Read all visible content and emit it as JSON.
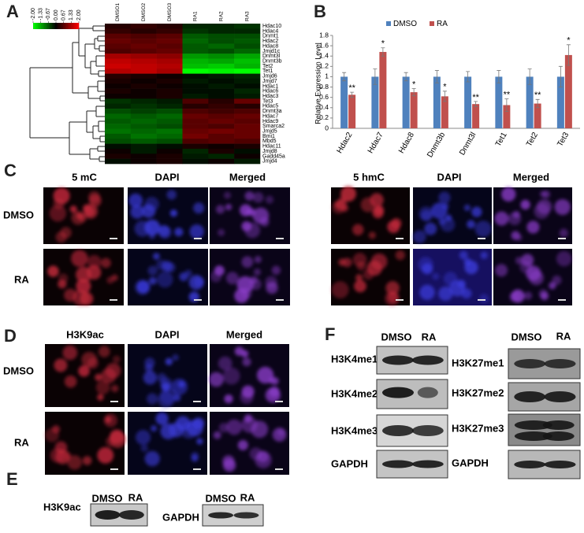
{
  "chart_data": [
    {
      "type": "heatmap",
      "columns": [
        "DMSO1",
        "DMSO2",
        "DMSO3",
        "RA1",
        "RA2",
        "RA3"
      ],
      "rows": [
        "Hdac10",
        "Hdac4",
        "Dnmt1",
        "Hdac2",
        "Hdac8",
        "Jmjd1c",
        "Dnmt3l",
        "Dnmt3b",
        "Tet2",
        "Tet1",
        "Jmjd6",
        "Jmjd7",
        "Hdac1",
        "Hdac6",
        "Hdac3",
        "Tet3",
        "Hdac5",
        "Dnmt3a",
        "Hdac7",
        "Hdac9",
        "Smarca2",
        "Jmjd5",
        "Bmi1",
        "Mbd5",
        "Hdac11",
        "Jmjd8",
        "Gadd45a",
        "Jmjd4"
      ],
      "values": [
        [
          0.3,
          0.4,
          0.3,
          -0.3,
          -0.3,
          -0.4
        ],
        [
          0.4,
          0.3,
          0.4,
          -0.4,
          -0.3,
          -0.3
        ],
        [
          0.7,
          0.6,
          0.7,
          -0.7,
          -0.6,
          -0.6
        ],
        [
          0.8,
          0.7,
          0.8,
          -0.8,
          -0.6,
          -0.7
        ],
        [
          0.7,
          0.8,
          0.7,
          -0.7,
          -0.8,
          -0.6
        ],
        [
          0.6,
          0.7,
          0.8,
          -0.7,
          -0.6,
          -0.8
        ],
        [
          1.3,
          1.2,
          1.1,
          -1.2,
          -1.1,
          -1.3
        ],
        [
          1.5,
          1.4,
          1.3,
          -1.4,
          -1.3,
          -1.5
        ],
        [
          1.6,
          1.5,
          1.4,
          -1.5,
          -1.6,
          -1.4
        ],
        [
          1.4,
          1.5,
          1.3,
          -2,
          -1.9,
          -2
        ],
        [
          0.3,
          0.2,
          0.1,
          -0.1,
          -0.2,
          -0.3
        ],
        [
          0.2,
          0.1,
          0.2,
          -0.2,
          -0.1,
          -0.2
        ],
        [
          0.1,
          0.2,
          0.1,
          -0.1,
          -0.2,
          -0.1
        ],
        [
          0.2,
          0.1,
          0.2,
          -0.1,
          -0.1,
          -0.3
        ],
        [
          0.1,
          0.1,
          0.2,
          -0.2,
          -0.1,
          -0.2
        ],
        [
          -0.4,
          -0.3,
          -0.2,
          0.6,
          0.3,
          0.8
        ],
        [
          -0.3,
          -0.4,
          -0.3,
          0.3,
          0.4,
          0.3
        ],
        [
          -0.6,
          -0.5,
          -0.6,
          0.6,
          0.5,
          0.6
        ],
        [
          -0.8,
          -0.7,
          -0.8,
          0.8,
          0.7,
          0.8
        ],
        [
          -0.7,
          -0.8,
          -0.7,
          0.7,
          0.8,
          0.7
        ],
        [
          -0.8,
          -0.7,
          -0.6,
          0.7,
          0.6,
          0.8
        ],
        [
          -0.9,
          -0.8,
          -0.9,
          0.8,
          0.9,
          0.8
        ],
        [
          -0.7,
          -0.9,
          -0.8,
          0.9,
          0.7,
          0.8
        ],
        [
          -0.6,
          -0.7,
          -0.6,
          0.6,
          0.7,
          0.6
        ],
        [
          -0.1,
          -0.2,
          -0.1,
          0.2,
          0.1,
          0.2
        ],
        [
          0.1,
          -0.2,
          0.1,
          -0.3,
          0.2,
          -0.1
        ],
        [
          0.2,
          0.1,
          0.2,
          -0.2,
          -0.3,
          0.1
        ],
        [
          -0.1,
          0.1,
          0.2,
          -0.1,
          0.1,
          -0.2
        ]
      ],
      "vlim": [
        -2,
        2
      ],
      "colormap": [
        "#00ff00",
        "#000000",
        "#ff0000"
      ],
      "ticks": [
        {
          "value": -2,
          "label": "-2.00"
        },
        {
          "value": -1.33,
          "label": "-1.33"
        },
        {
          "value": -0.67,
          "label": "-0.67"
        },
        {
          "value": 0,
          "label": "0.00"
        },
        {
          "value": 0.67,
          "label": "0.67"
        },
        {
          "value": 1.33,
          "label": "1.33"
        },
        {
          "value": 2,
          "label": "2.00"
        }
      ]
    },
    {
      "type": "bar",
      "categories": [
        "Hdac2",
        "Hdac7",
        "Hdac8",
        "Dnmt3b",
        "Dnmt3l",
        "Tet1",
        "Tet2",
        "Tet3"
      ],
      "y_label": "Relative Expression Level",
      "series": [
        {
          "name": "DMSO",
          "color": "#4f81bd",
          "values": [
            1,
            1,
            1,
            1,
            1,
            1,
            1,
            1
          ],
          "errors": [
            0.08,
            0.15,
            0.08,
            0.12,
            0.1,
            0.12,
            0.15,
            0.2
          ]
        },
        {
          "name": "RA",
          "color": "#c0504d",
          "values": [
            0.65,
            1.48,
            0.7,
            0.62,
            0.47,
            0.45,
            0.48,
            1.42
          ],
          "errors": [
            0.05,
            0.08,
            0.07,
            0.1,
            0.05,
            0.12,
            0.08,
            0.2
          ]
        }
      ],
      "annotations": [
        "**",
        "*",
        "*",
        "*",
        "**",
        "**",
        "**",
        "*"
      ],
      "ylim": [
        0,
        1.8
      ],
      "yticks": [
        0,
        0.2,
        0.4,
        0.6,
        0.8,
        1,
        1.2,
        1.4,
        1.6,
        1.8
      ],
      "legend": "top"
    }
  ],
  "panel_labels": [
    "A",
    "B",
    "C",
    "D",
    "E",
    "F"
  ],
  "panel_c": {
    "left_headers": [
      "5 mC",
      "DAPI",
      "Merged"
    ],
    "right_headers": [
      "5 hmC",
      "DAPI",
      "Merged"
    ],
    "rows": [
      "DMSO",
      "RA"
    ]
  },
  "panel_d": {
    "headers": [
      "H3K9ac",
      "DAPI",
      "Merged"
    ],
    "rows": [
      "DMSO",
      "RA"
    ]
  },
  "panel_e": {
    "blots": [
      {
        "label": "H3K9ac",
        "lanes": [
          "DMSO",
          "RA"
        ]
      },
      {
        "label": "GAPDH",
        "lanes": [
          "DMSO",
          "RA"
        ]
      }
    ]
  },
  "panel_f": {
    "left": {
      "lanes": [
        "DMSO",
        "RA"
      ],
      "labels": [
        "H3K4me1",
        "H3K4me2",
        "H3K4me3",
        "GAPDH"
      ]
    },
    "right": {
      "lanes": [
        "DMSO",
        "RA"
      ],
      "labels": [
        "H3K27me1",
        "H3K27me2",
        "H3K27me3",
        "GAPDH"
      ]
    }
  }
}
